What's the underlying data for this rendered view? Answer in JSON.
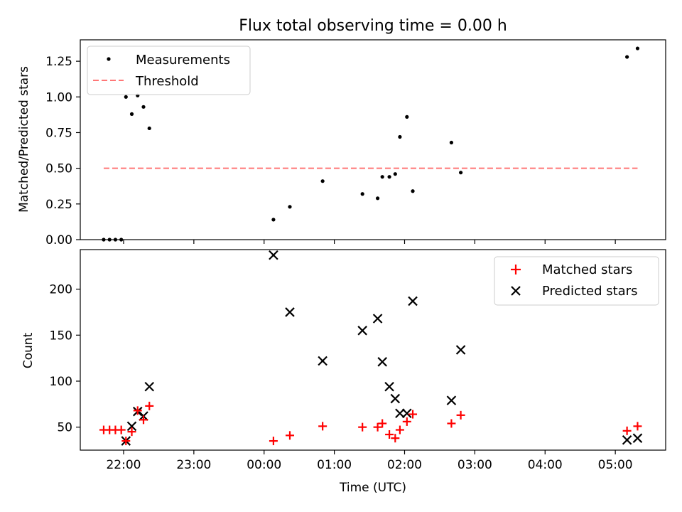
{
  "chart_data": [
    {
      "type": "scatter",
      "title": "Flux total observing time = 0.00 h",
      "xlabel": "",
      "ylabel": "Matched/Predicted stars",
      "ylim": [
        0,
        1.4
      ],
      "yticks": [
        "0.00",
        "0.25",
        "0.50",
        "0.75",
        "1.00",
        "1.25"
      ],
      "legend_position": "upper-left",
      "series": [
        {
          "name": "Measurements",
          "color": "#000000",
          "marker": "dot",
          "points": [
            [
              "21:43",
              0.0
            ],
            [
              "21:48",
              0.0
            ],
            [
              "21:53",
              0.0
            ],
            [
              "21:58",
              0.0
            ],
            [
              "22:02",
              1.0
            ],
            [
              "22:07",
              0.88
            ],
            [
              "22:12",
              1.01
            ],
            [
              "22:17",
              0.93
            ],
            [
              "22:22",
              0.78
            ],
            [
              "00:08",
              0.14
            ],
            [
              "00:22",
              0.23
            ],
            [
              "00:50",
              0.41
            ],
            [
              "01:24",
              0.32
            ],
            [
              "01:37",
              0.29
            ],
            [
              "01:41",
              0.44
            ],
            [
              "01:47",
              0.44
            ],
            [
              "01:52",
              0.46
            ],
            [
              "01:56",
              0.72
            ],
            [
              "02:02",
              0.86
            ],
            [
              "02:07",
              0.34
            ],
            [
              "02:40",
              0.68
            ],
            [
              "02:48",
              0.47
            ],
            [
              "05:10",
              1.28
            ],
            [
              "05:19",
              1.34
            ]
          ]
        },
        {
          "name": "Threshold",
          "color": "#ff7777",
          "style": "dashed",
          "points": [
            [
              "21:43",
              0.5
            ],
            [
              "05:19",
              0.5
            ]
          ]
        }
      ]
    },
    {
      "type": "scatter",
      "title": "",
      "xlabel": "Time (UTC)",
      "ylabel": "Count",
      "xlim": [
        "21:23",
        "05:43"
      ],
      "ylim": [
        25,
        243
      ],
      "xticks": [
        "22:00",
        "23:00",
        "00:00",
        "01:00",
        "02:00",
        "03:00",
        "04:00",
        "05:00"
      ],
      "yticks": [
        "50",
        "100",
        "150",
        "200"
      ],
      "legend_position": "upper-right",
      "series": [
        {
          "name": "Matched stars",
          "color": "#ff0000",
          "marker": "plus",
          "points": [
            [
              "21:43",
              47
            ],
            [
              "21:48",
              47
            ],
            [
              "21:53",
              47
            ],
            [
              "21:58",
              47
            ],
            [
              "22:02",
              35
            ],
            [
              "22:07",
              45
            ],
            [
              "22:12",
              68
            ],
            [
              "22:17",
              58
            ],
            [
              "22:22",
              73
            ],
            [
              "00:08",
              35
            ],
            [
              "00:22",
              41
            ],
            [
              "00:50",
              51
            ],
            [
              "01:24",
              50
            ],
            [
              "01:37",
              50
            ],
            [
              "01:41",
              54
            ],
            [
              "01:47",
              42
            ],
            [
              "01:52",
              38
            ],
            [
              "01:56",
              47
            ],
            [
              "02:02",
              56
            ],
            [
              "02:07",
              64
            ],
            [
              "02:40",
              54
            ],
            [
              "02:48",
              63
            ],
            [
              "05:10",
              46
            ],
            [
              "05:19",
              51
            ]
          ]
        },
        {
          "name": "Predicted stars",
          "color": "#000000",
          "marker": "x",
          "points": [
            [
              "22:02",
              35
            ],
            [
              "22:07",
              51
            ],
            [
              "22:12",
              67
            ],
            [
              "22:17",
              62
            ],
            [
              "22:22",
              94
            ],
            [
              "00:08",
              237
            ],
            [
              "00:22",
              175
            ],
            [
              "00:50",
              122
            ],
            [
              "01:24",
              155
            ],
            [
              "01:37",
              168
            ],
            [
              "01:41",
              121
            ],
            [
              "01:47",
              94
            ],
            [
              "01:52",
              81
            ],
            [
              "01:56",
              65
            ],
            [
              "02:02",
              65
            ],
            [
              "02:07",
              187
            ],
            [
              "02:40",
              79
            ],
            [
              "02:48",
              134
            ],
            [
              "05:10",
              36
            ],
            [
              "05:19",
              38
            ]
          ]
        }
      ]
    }
  ]
}
